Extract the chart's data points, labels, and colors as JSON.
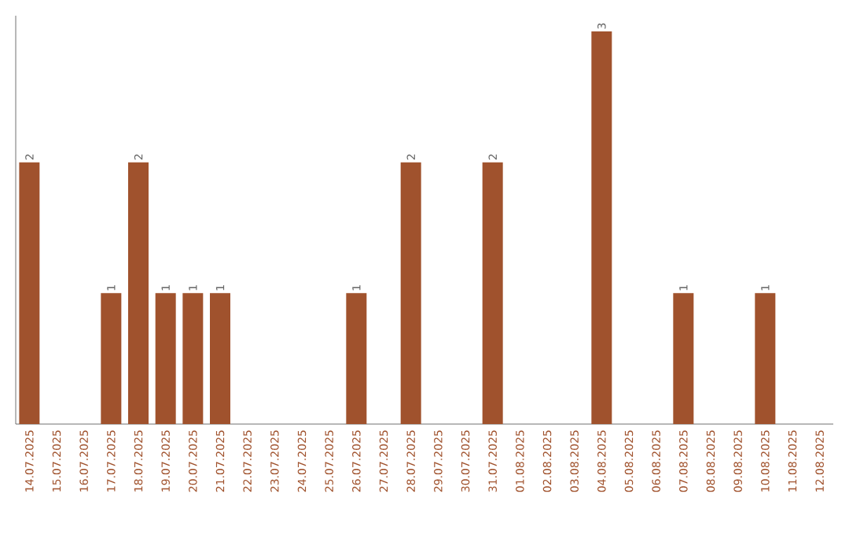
{
  "chart_data": {
    "type": "bar",
    "categories": [
      "14.07.2025",
      "15.07.2025",
      "16.07.2025",
      "17.07.2025",
      "18.07.2025",
      "19.07.2025",
      "20.07.2025",
      "21.07.2025",
      "22.07.2025",
      "23.07.2025",
      "24.07.2025",
      "25.07.2025",
      "26.07.2025",
      "27.07.2025",
      "28.07.2025",
      "29.07.2025",
      "30.07.2025",
      "31.07.2025",
      "01.08.2025",
      "02.08.2025",
      "03.08.2025",
      "04.08.2025",
      "05.08.2025",
      "06.08.2025",
      "07.08.2025",
      "08.08.2025",
      "09.08.2025",
      "10.08.2025",
      "11.08.2025",
      "12.08.2025"
    ],
    "values": [
      2,
      0,
      0,
      1,
      2,
      1,
      1,
      1,
      0,
      0,
      0,
      0,
      1,
      0,
      2,
      0,
      0,
      2,
      0,
      0,
      0,
      3,
      0,
      0,
      1,
      0,
      0,
      1,
      0,
      0
    ],
    "value_labels": [
      "2",
      null,
      null,
      "1",
      "2",
      "1",
      "1",
      "1",
      null,
      null,
      null,
      null,
      "1",
      null,
      "2",
      null,
      null,
      "2",
      null,
      null,
      null,
      "3",
      null,
      null,
      "1",
      null,
      null,
      "1",
      null,
      null
    ],
    "color": "#a0522d"
  }
}
